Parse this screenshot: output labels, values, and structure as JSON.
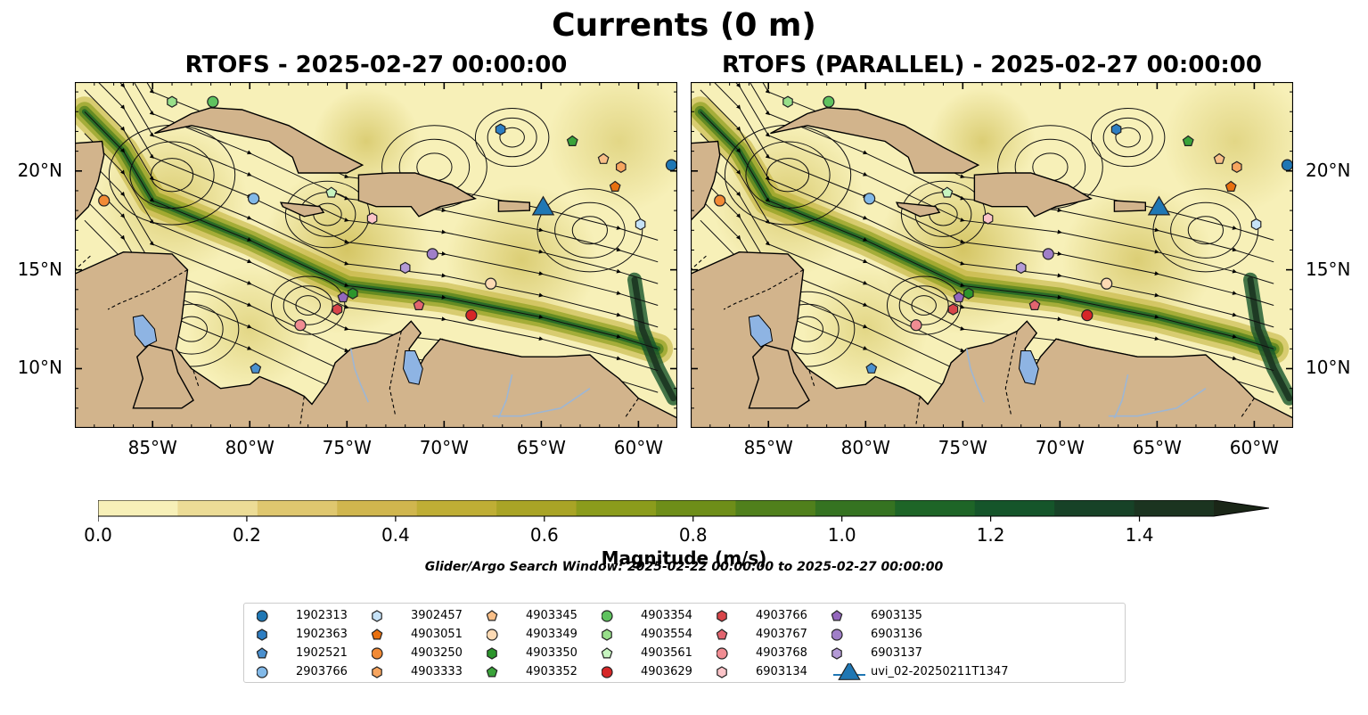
{
  "figure": {
    "suptitle": "Currents (0 m)",
    "left_title": "RTOFS - 2025-02-27 00:00:00",
    "right_title": "RTOFS (PARALLEL) - 2025-02-27 00:00:00",
    "search_window": "Glider/Argo Search Window: 2025-02-22 00:00:00 to 2025-02-27 00:00:00",
    "colorbar_label": "Magnitude (m/s)"
  },
  "axes": {
    "lon_range": [
      -89,
      -58
    ],
    "lat_range": [
      7,
      24.5
    ],
    "lon_ticks": [
      {
        "value": -85,
        "label": "85°W"
      },
      {
        "value": -80,
        "label": "80°W"
      },
      {
        "value": -75,
        "label": "75°W"
      },
      {
        "value": -70,
        "label": "70°W"
      },
      {
        "value": -65,
        "label": "65°W"
      },
      {
        "value": -60,
        "label": "60°W"
      }
    ],
    "lat_ticks": [
      {
        "value": 10,
        "label": "10°N"
      },
      {
        "value": 15,
        "label": "15°N"
      },
      {
        "value": 20,
        "label": "20°N"
      }
    ]
  },
  "colorbar": {
    "min": 0.0,
    "max": 1.5,
    "step": 0.1,
    "extend": "max",
    "tick_labels": [
      "0.0",
      "0.2",
      "0.4",
      "0.6",
      "0.8",
      "1.0",
      "1.2",
      "1.4"
    ],
    "colors": [
      "#f7f0b8",
      "#ecdc96",
      "#dfc76f",
      "#d0b64e",
      "#bfae35",
      "#a9a426",
      "#8b9c1c",
      "#6e8e19",
      "#50801c",
      "#357321",
      "#1e6527",
      "#15552a",
      "#174227",
      "#1b3420",
      "#1a2617"
    ]
  },
  "colors": {
    "land": "#d2b48c",
    "lake": "#8eb4e3",
    "river": "#9db6d4"
  },
  "legend": [
    {
      "id": "1902313",
      "marker": "circle",
      "color": "#1f77b4"
    },
    {
      "id": "1902363",
      "marker": "hexagon",
      "color": "#2e7ec2"
    },
    {
      "id": "1902521",
      "marker": "pentagon",
      "color": "#4a90cf"
    },
    {
      "id": "2903766",
      "marker": "circle",
      "color": "#82b9e8"
    },
    {
      "id": "3902457",
      "marker": "hexagon",
      "color": "#c6e2f7"
    },
    {
      "id": "4903051",
      "marker": "pentagon",
      "color": "#e8700f"
    },
    {
      "id": "4903250",
      "marker": "circle",
      "color": "#f28a35"
    },
    {
      "id": "4903333",
      "marker": "hexagon",
      "color": "#f7a55f"
    },
    {
      "id": "4903345",
      "marker": "pentagon",
      "color": "#f9bf88"
    },
    {
      "id": "4903349",
      "marker": "circle",
      "color": "#fddab4"
    },
    {
      "id": "4903350",
      "marker": "hexagon",
      "color": "#2c952c"
    },
    {
      "id": "4903352",
      "marker": "pentagon",
      "color": "#3aa33a"
    },
    {
      "id": "4903354",
      "marker": "circle",
      "color": "#5fc25f"
    },
    {
      "id": "4903554",
      "marker": "hexagon",
      "color": "#98df8a"
    },
    {
      "id": "4903561",
      "marker": "pentagon",
      "color": "#c7f5c0"
    },
    {
      "id": "4903629",
      "marker": "circle",
      "color": "#d62728"
    },
    {
      "id": "4903766",
      "marker": "hexagon",
      "color": "#d8454a"
    },
    {
      "id": "4903767",
      "marker": "pentagon",
      "color": "#e2646f"
    },
    {
      "id": "4903768",
      "marker": "circle",
      "color": "#f08c92"
    },
    {
      "id": "6903134",
      "marker": "hexagon",
      "color": "#fbc4c8"
    },
    {
      "id": "6903135",
      "marker": "pentagon",
      "color": "#9467bd"
    },
    {
      "id": "6903136",
      "marker": "circle",
      "color": "#a07fc8"
    },
    {
      "id": "6903137",
      "marker": "hexagon",
      "color": "#b49ad6"
    },
    {
      "id": "uvi_02-20250211T1347",
      "marker": "triangle",
      "color": "#1f77b4"
    }
  ],
  "platform_positions_left": [
    {
      "id": "1902313",
      "lon": -58.3,
      "lat": 20.3
    },
    {
      "id": "1902363",
      "lon": -67.1,
      "lat": 22.1
    },
    {
      "id": "1902521",
      "lon": -79.7,
      "lat": 10.0
    },
    {
      "id": "2903766",
      "lon": -79.8,
      "lat": 18.6
    },
    {
      "id": "3902457",
      "lon": -59.9,
      "lat": 17.3
    },
    {
      "id": "4903051",
      "lon": -61.2,
      "lat": 19.2
    },
    {
      "id": "4903250",
      "lon": -87.5,
      "lat": 18.5
    },
    {
      "id": "4903333",
      "lon": -60.9,
      "lat": 20.2
    },
    {
      "id": "4903345",
      "lon": -61.8,
      "lat": 20.6
    },
    {
      "id": "4903349",
      "lon": -67.6,
      "lat": 14.3
    },
    {
      "id": "4903350",
      "lon": -74.7,
      "lat": 13.8
    },
    {
      "id": "4903352",
      "lon": -63.4,
      "lat": 21.5
    },
    {
      "id": "4903354",
      "lon": -81.9,
      "lat": 23.5
    },
    {
      "id": "4903554",
      "lon": -84.0,
      "lat": 23.5
    },
    {
      "id": "4903561",
      "lon": -75.8,
      "lat": 18.9
    },
    {
      "id": "4903629",
      "lon": -68.6,
      "lat": 12.7
    },
    {
      "id": "4903766",
      "lon": -75.5,
      "lat": 13.0
    },
    {
      "id": "4903767",
      "lon": -71.3,
      "lat": 13.2
    },
    {
      "id": "4903768",
      "lon": -77.4,
      "lat": 12.2
    },
    {
      "id": "6903134",
      "lon": -73.7,
      "lat": 17.6
    },
    {
      "id": "6903135",
      "lon": -75.2,
      "lat": 13.6
    },
    {
      "id": "6903136",
      "lon": -70.6,
      "lat": 15.8
    },
    {
      "id": "6903137",
      "lon": -72.0,
      "lat": 15.1
    },
    {
      "id": "uvi_02-20250211T1347",
      "lon": -64.9,
      "lat": 18.2
    }
  ],
  "platform_positions_right": [
    {
      "id": "1902313",
      "lon": -58.3,
      "lat": 20.3
    },
    {
      "id": "1902363",
      "lon": -67.1,
      "lat": 22.1
    },
    {
      "id": "1902521",
      "lon": -79.7,
      "lat": 10.0
    },
    {
      "id": "2903766",
      "lon": -79.8,
      "lat": 18.6
    },
    {
      "id": "3902457",
      "lon": -59.9,
      "lat": 17.3
    },
    {
      "id": "4903051",
      "lon": -61.2,
      "lat": 19.2
    },
    {
      "id": "4903250",
      "lon": -87.5,
      "lat": 18.5
    },
    {
      "id": "4903333",
      "lon": -60.9,
      "lat": 20.2
    },
    {
      "id": "4903345",
      "lon": -61.8,
      "lat": 20.6
    },
    {
      "id": "4903349",
      "lon": -67.6,
      "lat": 14.3
    },
    {
      "id": "4903350",
      "lon": -74.7,
      "lat": 13.8
    },
    {
      "id": "4903352",
      "lon": -63.4,
      "lat": 21.5
    },
    {
      "id": "4903354",
      "lon": -81.9,
      "lat": 23.5
    },
    {
      "id": "4903554",
      "lon": -84.0,
      "lat": 23.5
    },
    {
      "id": "4903561",
      "lon": -75.8,
      "lat": 18.9
    },
    {
      "id": "4903629",
      "lon": -68.6,
      "lat": 12.7
    },
    {
      "id": "4903766",
      "lon": -75.5,
      "lat": 13.0
    },
    {
      "id": "4903767",
      "lon": -71.3,
      "lat": 13.2
    },
    {
      "id": "4903768",
      "lon": -77.4,
      "lat": 12.2
    },
    {
      "id": "6903134",
      "lon": -73.7,
      "lat": 17.6
    },
    {
      "id": "6903135",
      "lon": -75.2,
      "lat": 13.6
    },
    {
      "id": "6903136",
      "lon": -70.6,
      "lat": 15.8
    },
    {
      "id": "6903137",
      "lon": -72.0,
      "lat": 15.1
    },
    {
      "id": "uvi_02-20250211T1347",
      "lon": -64.9,
      "lat": 18.2
    }
  ]
}
